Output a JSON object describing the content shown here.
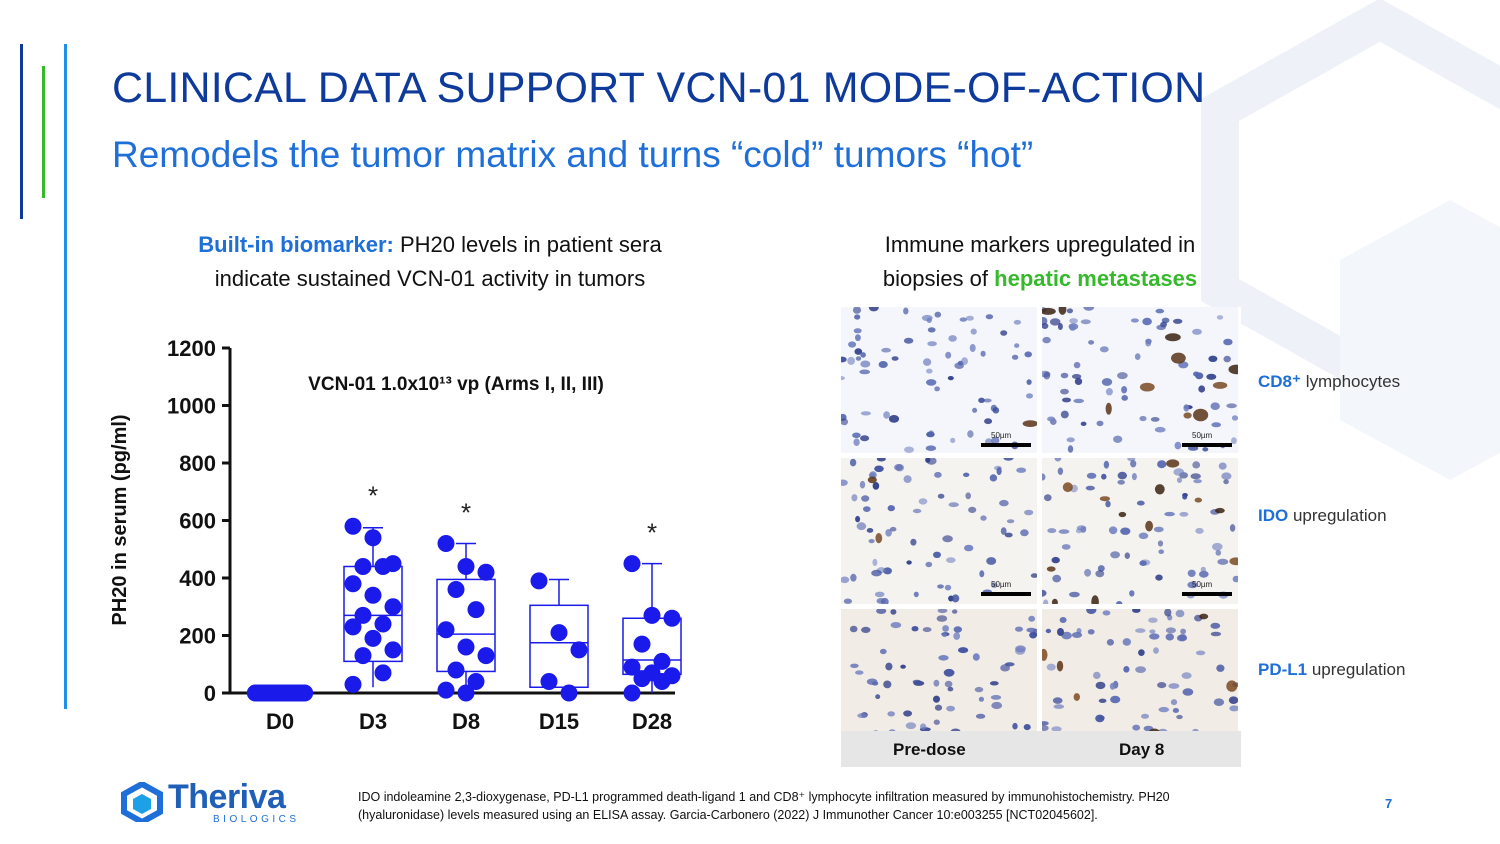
{
  "slide": {
    "title": "CLINICAL DATA SUPPORT VCN-01 MODE-OF-ACTION",
    "subtitle": "Remodels the tumor matrix and turns “cold” tumors “hot”",
    "page_number": "7"
  },
  "left_caption": {
    "bold": "Built-in biomarker:",
    "line1_rest": " PH20 levels in patient sera",
    "line2": "indicate sustained VCN-01 activity in tumors"
  },
  "right_caption": {
    "line1": "Immune markers upregulated in",
    "line2_prefix": "biopsies of ",
    "line2_highlight": "hepatic metastases"
  },
  "chart_data": {
    "type": "scatter",
    "title": "VCN-01 1.0x10¹³ vp (Arms I, II, III)",
    "ylabel": "PH20 in serum (pg/ml)",
    "xlabel": "",
    "categories": [
      "D0",
      "D3",
      "D8",
      "D15",
      "D28"
    ],
    "ylim": [
      0,
      1200
    ],
    "yticks": [
      "0",
      "200",
      "400",
      "600",
      "800",
      "1000",
      "1200"
    ],
    "significance": [
      "",
      "*",
      "*",
      "",
      "*"
    ],
    "points": [
      [
        0,
        0,
        0,
        0,
        0,
        0,
        0,
        0,
        0,
        0,
        0,
        0,
        0,
        0,
        0,
        0,
        0,
        0,
        0,
        0
      ],
      [
        580,
        540,
        450,
        440,
        440,
        380,
        340,
        300,
        270,
        240,
        230,
        190,
        150,
        130,
        70,
        30
      ],
      [
        520,
        440,
        420,
        360,
        290,
        220,
        160,
        130,
        80,
        40,
        10,
        0
      ],
      [
        390,
        210,
        150,
        40,
        0
      ],
      [
        450,
        270,
        260,
        170,
        110,
        90,
        70,
        60,
        50,
        40,
        0
      ]
    ],
    "boxes": [
      {
        "min": 0,
        "q1": 0,
        "median": 0,
        "q3": 0,
        "max": 0
      },
      {
        "min": 20,
        "q1": 110,
        "median": 270,
        "q3": 440,
        "max": 575
      },
      {
        "min": 0,
        "q1": 75,
        "median": 205,
        "q3": 395,
        "max": 520
      },
      {
        "min": 20,
        "q1": 20,
        "median": 175,
        "q3": 305,
        "max": 395
      },
      {
        "min": 0,
        "q1": 65,
        "median": 115,
        "q3": 260,
        "max": 450
      }
    ],
    "color": "#1a1aeb"
  },
  "micrographs": {
    "rows": [
      {
        "marker": "CD8⁺",
        "marker_rest": " lymphocytes"
      },
      {
        "marker": "IDO",
        "marker_rest": " upregulation"
      },
      {
        "marker": "PD-L1",
        "marker_rest": " upregulation"
      }
    ],
    "columns": [
      "Pre-dose",
      "Day 8"
    ],
    "scale_label": "50µm"
  },
  "footnote": {
    "line1": "IDO indoleamine 2,3-dioxygenase, PD-L1 programmed death-ligand 1 and CD8⁺ lymphocyte infiltration measured by immunohistochemistry. PH20",
    "line2": "(hyaluronidase) levels measured using an ELISA assay. Garcia-Carbonero (2022) J Immunother Cancer 10:e003255 [NCT02045602]."
  },
  "logo": {
    "name": "Theriva",
    "sub": "BIOLOGICS"
  },
  "colors": {
    "navy": "#0d3a9b",
    "blue": "#1f6fd9",
    "green": "#36b92a",
    "dot": "#1a1aeb"
  }
}
